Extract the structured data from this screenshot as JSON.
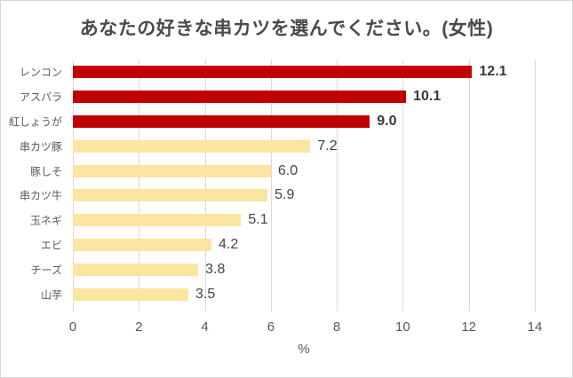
{
  "window": {
    "background": "#ffffff",
    "border_color": "#d6d6d6"
  },
  "chart_data": {
    "type": "bar",
    "orientation": "horizontal",
    "title": "あなたの好きな串カツを選んでください。(女性)",
    "categories": [
      "レンコン",
      "アスパラ",
      "紅しょうが",
      "串カツ豚",
      "豚しそ",
      "串カツ牛",
      "玉ネギ",
      "エビ",
      "チーズ",
      "山芋"
    ],
    "values": [
      12.1,
      10.1,
      9.0,
      7.2,
      6.0,
      5.9,
      5.1,
      4.2,
      3.8,
      3.5
    ],
    "value_labels": [
      "12.1",
      "10.1",
      "9.0",
      "7.2",
      "6.0",
      "5.9",
      "5.1",
      "4.2",
      "3.8",
      "3.5"
    ],
    "highlighted_categories": [
      "レンコン",
      "アスパラ",
      "紅しょうが"
    ],
    "xlabel": "%",
    "xlim": [
      0,
      14
    ],
    "xticks": [
      0,
      2,
      4,
      6,
      8,
      10,
      12,
      14
    ],
    "grid": true,
    "legend": "none",
    "colors": {
      "highlight_bar": "#c00000",
      "normal_bar": "#fbe5a0",
      "gridline": "#d9d9d9",
      "title_text": "#4a4a4a",
      "axis_text": "#595959",
      "value_text": "#3f3f3f"
    }
  }
}
